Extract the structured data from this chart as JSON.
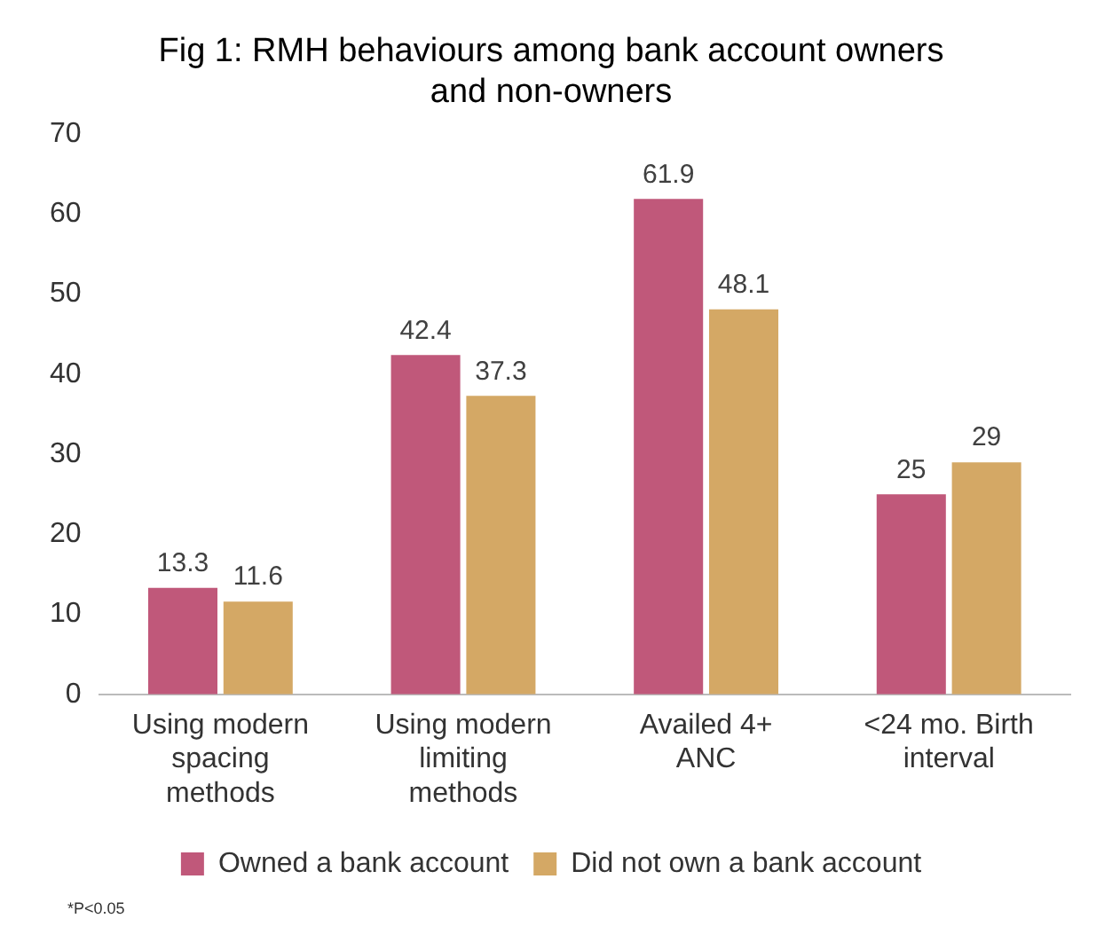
{
  "chart_data": {
    "type": "bar",
    "title": "Fig 1: RMH behaviours among bank account owners and non-owners",
    "categories": [
      "Using modern spacing methods",
      "Using modern limiting methods",
      "Availed 4+ ANC",
      "<24 mo. Birth interval"
    ],
    "series": [
      {
        "name": "Owned a bank account",
        "color": "#c0587a",
        "values": [
          13.3,
          42.4,
          61.9,
          25
        ]
      },
      {
        "name": "Did not own a bank account",
        "color": "#d4a865",
        "values": [
          11.6,
          37.3,
          48.1,
          29
        ]
      }
    ],
    "ylim": [
      0,
      70
    ],
    "yticks": [
      0,
      10,
      20,
      30,
      40,
      50,
      60,
      70
    ],
    "grid": false,
    "legend": "bottom",
    "data_labels": true,
    "annotations": [
      "*P<0.05"
    ]
  }
}
